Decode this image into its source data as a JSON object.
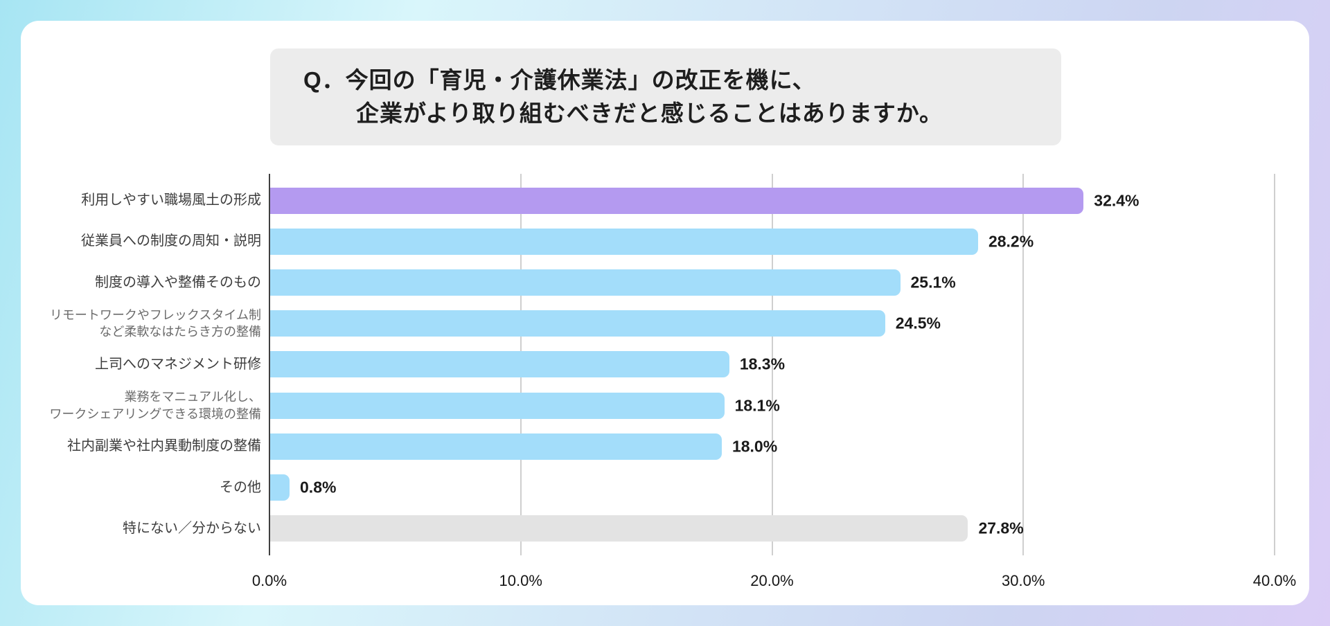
{
  "title": {
    "line1": "Q．今回の「育児・介護休業法」の改正を機に、",
    "line2": "企業がより取り組むべきだと感じることはありますか。"
  },
  "chart_data": {
    "type": "bar",
    "orientation": "horizontal",
    "title": "Q．今回の「育児・介護休業法」の改正を機に、企業がより取り組むべきだと感じることはありますか。",
    "categories": [
      "利用しやすい職場風土の形成",
      "従業員への制度の周知・説明",
      "制度の導入や整備そのもの",
      "リモートワークやフレックスタイム制\nなど柔軟なはたらき方の整備",
      "上司へのマネジメント研修",
      "業務をマニュアル化し、\nワークシェアリングできる環境の整備",
      "社内副業や社内異動制度の整備",
      "その他",
      "特にない／分からない"
    ],
    "values": [
      32.4,
      28.2,
      25.1,
      24.5,
      18.3,
      18.1,
      18.0,
      0.8,
      27.8
    ],
    "value_labels": [
      "32.4%",
      "28.2%",
      "25.1%",
      "24.5%",
      "18.3%",
      "18.1%",
      "18.0%",
      "0.8%",
      "27.8%"
    ],
    "bar_colors": [
      "#b49af0",
      "#a3ddfa",
      "#a3ddfa",
      "#a3ddfa",
      "#a3ddfa",
      "#a3ddfa",
      "#a3ddfa",
      "#a3ddfa",
      "#e3e3e3"
    ],
    "x_ticks": [
      "0.0%",
      "10.0%",
      "20.0%",
      "30.0%",
      "40.0%"
    ],
    "xlim": [
      0,
      40
    ],
    "grid": "vertical",
    "legend": false
  },
  "colors": {
    "highlight_bar": "#b49af0",
    "default_bar": "#a3ddfa",
    "neutral_bar": "#e3e3e3",
    "title_box_bg": "#ececec",
    "card_bg": "#ffffff",
    "axis_line": "#404040",
    "gridline": "#cfcfcf"
  }
}
